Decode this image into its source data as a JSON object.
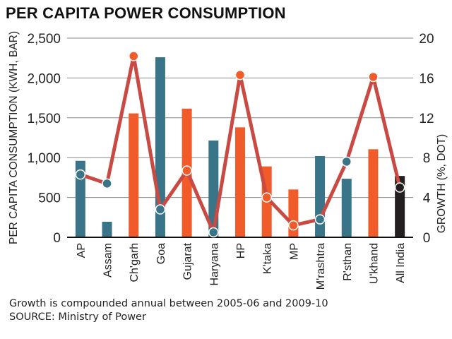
{
  "chart_data": {
    "type": "bar+line",
    "title": "PER CAPITA POWER CONSUMPTION",
    "categories": [
      "AP",
      "Assam",
      "Ch'garh",
      "Goa",
      "Gujarat",
      "Haryana",
      "HP",
      "K'taka",
      "MP",
      "M'rashtra",
      "R'sthan",
      "U'khand",
      "All India"
    ],
    "series": [
      {
        "name": "PER CAPITA CONSUMPTION (KWH, BAR)",
        "type": "bar",
        "axis": "left",
        "values": [
          960,
          195,
          1555,
          2260,
          1615,
          1215,
          1380,
          890,
          600,
          1020,
          735,
          1105,
          770
        ],
        "colors": [
          "#3a7489",
          "#3a7489",
          "#f15a29",
          "#3a7489",
          "#f15a29",
          "#3a7489",
          "#f15a29",
          "#f15a29",
          "#f15a29",
          "#3a7489",
          "#3a7489",
          "#f15a29",
          "#231f20"
        ]
      },
      {
        "name": "GROWTH (%, DOT)",
        "type": "line",
        "axis": "right",
        "values": [
          6.3,
          5.4,
          18.2,
          2.8,
          6.7,
          0.5,
          16.3,
          4.0,
          1.2,
          1.8,
          7.6,
          16.1,
          5.0
        ]
      }
    ],
    "ylabel": "PER CAPITA CONSUMPTION (KWH, BAR)",
    "y2label": "GROWTH (%, DOT)",
    "ylim": [
      0,
      2500
    ],
    "y2lim": [
      0,
      20
    ],
    "yticks": [
      "0",
      "500",
      "1,000",
      "1,500",
      "2,000",
      "2,500"
    ],
    "y2ticks": [
      "0",
      "4",
      "8",
      "12",
      "16",
      "20"
    ],
    "grid": true,
    "line_color": "#c94a42"
  },
  "footnote": "Growth is compounded annual between 2005-06 and 2009-10",
  "source": "SOURCE: Ministry of Power"
}
